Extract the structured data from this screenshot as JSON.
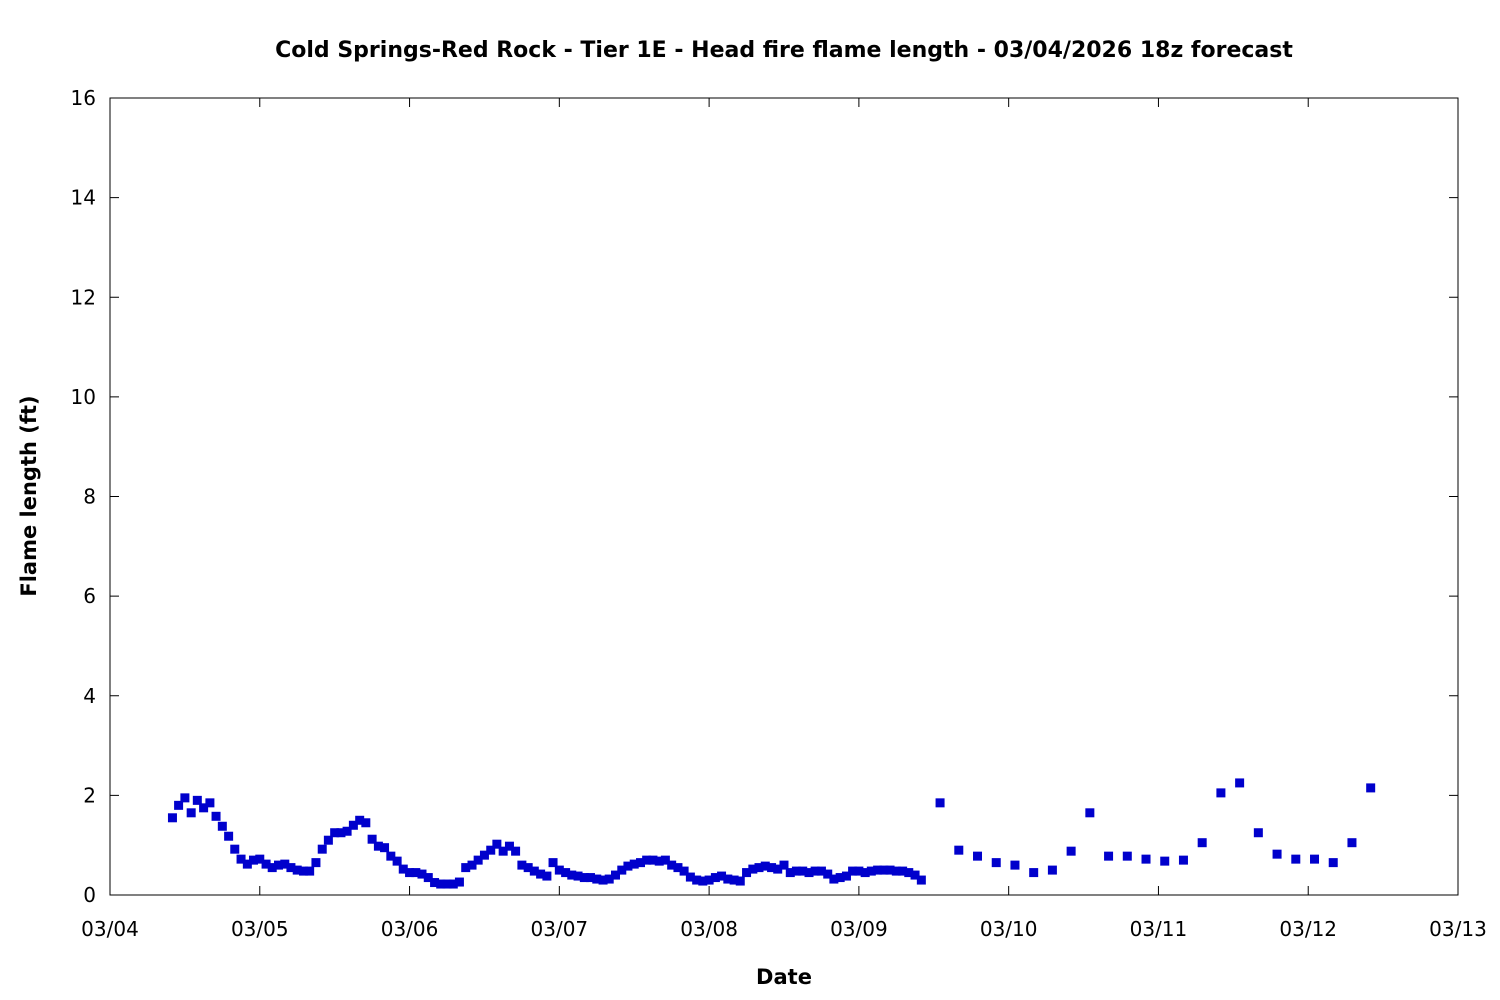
{
  "chart_data": {
    "type": "scatter",
    "title": "Cold Springs-Red Rock - Tier 1E - Head fire flame length - 03/04/2026 18z forecast",
    "xlabel": "Date",
    "ylabel": "Flame length (ft)",
    "x_unit": "days after 03/04 00z",
    "xlim": [
      0,
      9
    ],
    "ylim": [
      0,
      16
    ],
    "x_ticks": [
      {
        "value": 0,
        "label": "03/04"
      },
      {
        "value": 1,
        "label": "03/05"
      },
      {
        "value": 2,
        "label": "03/06"
      },
      {
        "value": 3,
        "label": "03/07"
      },
      {
        "value": 4,
        "label": "03/08"
      },
      {
        "value": 5,
        "label": "03/09"
      },
      {
        "value": 6,
        "label": "03/10"
      },
      {
        "value": 7,
        "label": "03/11"
      },
      {
        "value": 8,
        "label": "03/12"
      },
      {
        "value": 9,
        "label": "03/13"
      }
    ],
    "y_ticks": [
      {
        "value": 0,
        "label": "0"
      },
      {
        "value": 2,
        "label": "2"
      },
      {
        "value": 4,
        "label": "4"
      },
      {
        "value": 6,
        "label": "6"
      },
      {
        "value": 8,
        "label": "8"
      },
      {
        "value": 10,
        "label": "10"
      },
      {
        "value": 12,
        "label": "12"
      },
      {
        "value": 14,
        "label": "14"
      },
      {
        "value": 16,
        "label": "16"
      }
    ],
    "grid": false,
    "color": "#0000cc",
    "series": [
      {
        "x": [
          0.417,
          0.458,
          0.5,
          0.542,
          0.583,
          0.625,
          0.667,
          0.708,
          0.75,
          0.792,
          0.833,
          0.875,
          0.917,
          0.958,
          1.0,
          1.042,
          1.083,
          1.125,
          1.167,
          1.208,
          1.25,
          1.292,
          1.333,
          1.375,
          1.417,
          1.458,
          1.5,
          1.542,
          1.583,
          1.625,
          1.667,
          1.708,
          1.75,
          1.792,
          1.833,
          1.875,
          1.917,
          1.958,
          2.0,
          2.042,
          2.083,
          2.125,
          2.167,
          2.208,
          2.25,
          2.292,
          2.333,
          2.375,
          2.417,
          2.458,
          2.5,
          2.542,
          2.583,
          2.625,
          2.667,
          2.708,
          2.75,
          2.792,
          2.833,
          2.875,
          2.917,
          2.958,
          3.0,
          3.042,
          3.083,
          3.125,
          3.167,
          3.208,
          3.25,
          3.292,
          3.333,
          3.375,
          3.417,
          3.458,
          3.5,
          3.542,
          3.583,
          3.625,
          3.667,
          3.708,
          3.75,
          3.792,
          3.833,
          3.875,
          3.917,
          3.958,
          4.0,
          4.042,
          4.083,
          4.125,
          4.167,
          4.208,
          4.25,
          4.292,
          4.333,
          4.375,
          4.417,
          4.458,
          4.5,
          4.542,
          4.583,
          4.625,
          4.667,
          4.708,
          4.75,
          4.792,
          4.833,
          4.875,
          4.917,
          4.958,
          5.0,
          5.042,
          5.083,
          5.125,
          5.167,
          5.208,
          5.25,
          5.292,
          5.333,
          5.375,
          5.417,
          5.542,
          5.667,
          5.792,
          5.917,
          6.042,
          6.167,
          6.292,
          6.417,
          6.542,
          6.667,
          6.792,
          6.917,
          7.042,
          7.167,
          7.292,
          7.417,
          7.542,
          7.667,
          7.792,
          7.917,
          8.042,
          8.167,
          8.292,
          8.417
        ],
        "y": [
          1.55,
          1.8,
          1.95,
          1.65,
          1.9,
          1.75,
          1.85,
          1.58,
          1.38,
          1.18,
          0.92,
          0.72,
          0.62,
          0.7,
          0.72,
          0.62,
          0.55,
          0.6,
          0.62,
          0.55,
          0.5,
          0.48,
          0.48,
          0.65,
          0.92,
          1.1,
          1.25,
          1.25,
          1.28,
          1.4,
          1.5,
          1.45,
          1.12,
          0.98,
          0.95,
          0.78,
          0.68,
          0.52,
          0.45,
          0.45,
          0.42,
          0.35,
          0.25,
          0.22,
          0.22,
          0.22,
          0.26,
          0.55,
          0.6,
          0.7,
          0.8,
          0.9,
          1.02,
          0.88,
          0.98,
          0.88,
          0.6,
          0.55,
          0.48,
          0.42,
          0.38,
          0.65,
          0.5,
          0.45,
          0.4,
          0.38,
          0.35,
          0.35,
          0.32,
          0.3,
          0.32,
          0.4,
          0.5,
          0.58,
          0.62,
          0.65,
          0.7,
          0.7,
          0.68,
          0.7,
          0.6,
          0.55,
          0.48,
          0.36,
          0.3,
          0.28,
          0.3,
          0.35,
          0.38,
          0.32,
          0.3,
          0.28,
          0.45,
          0.52,
          0.55,
          0.58,
          0.55,
          0.52,
          0.6,
          0.45,
          0.48,
          0.48,
          0.45,
          0.48,
          0.48,
          0.42,
          0.32,
          0.35,
          0.38,
          0.48,
          0.48,
          0.45,
          0.48,
          0.5,
          0.5,
          0.5,
          0.48,
          0.48,
          0.45,
          0.4,
          0.3,
          1.85,
          0.9,
          0.78,
          0.65,
          0.6,
          0.45,
          0.5,
          0.88,
          1.65,
          0.78,
          0.78,
          0.72,
          0.68,
          0.7,
          1.05,
          2.05,
          2.25,
          1.25,
          0.82,
          0.72,
          0.72,
          0.65,
          1.05,
          2.15
        ]
      }
    ]
  }
}
